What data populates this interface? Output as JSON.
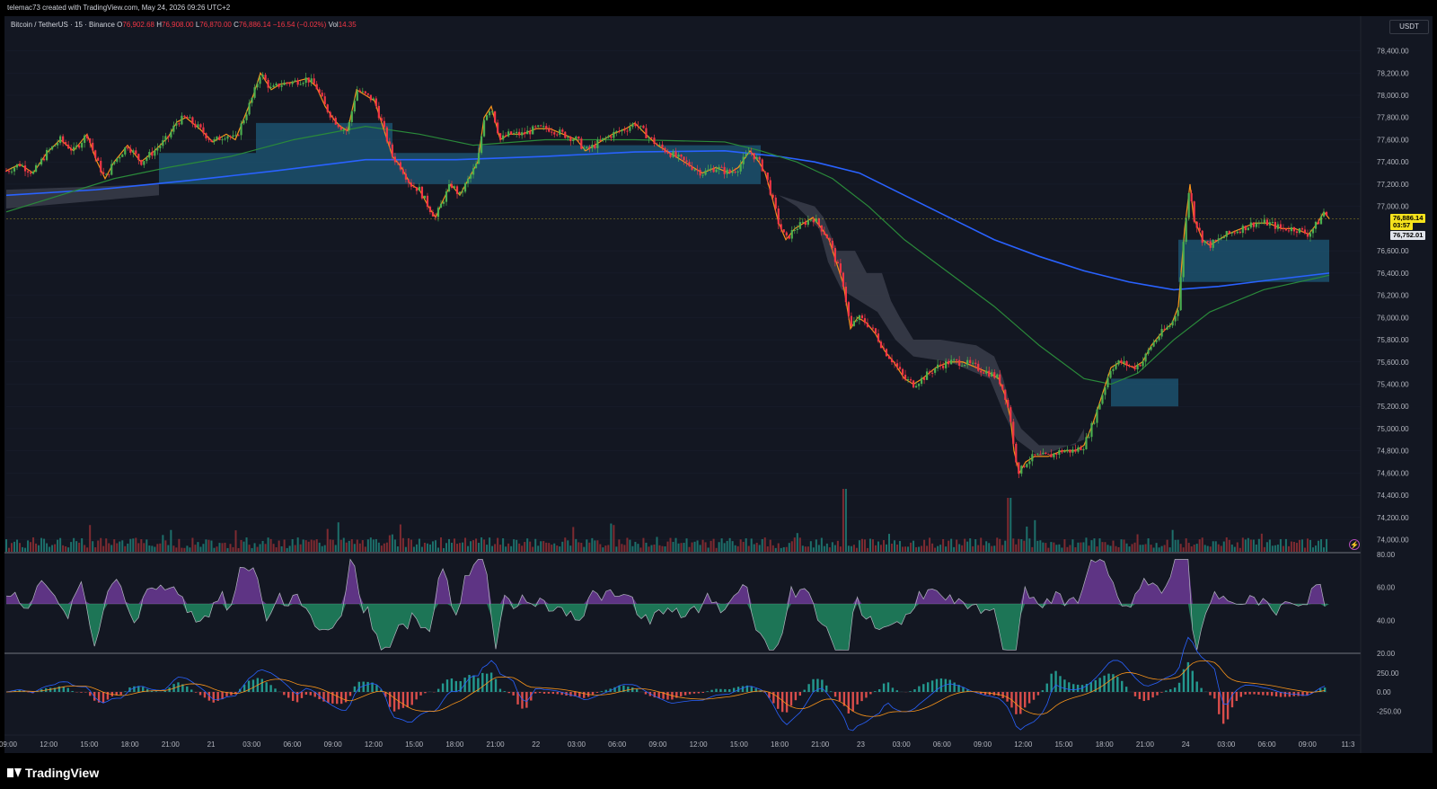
{
  "header": {
    "created_by": "telemac73 created with TradingView.com, May 24, 2026 09:26 UTC+2"
  },
  "legend": {
    "symbol": "Bitcoin / TetherUS · 15 · Binance",
    "open_label": "O",
    "open": "76,902.68",
    "high_label": "H",
    "high": "76,908.00",
    "low_label": "L",
    "low": "76,870.00",
    "close_label": "C",
    "close": "76,886.14",
    "change": "−16.54 (−0.02%)",
    "vol_label": "Vol",
    "vol": "14.35"
  },
  "price_scale": {
    "currency": "USDT",
    "ticks": [
      "78,400.00",
      "78,200.00",
      "78,000.00",
      "77,800.00",
      "77,600.00",
      "77,400.00",
      "77,200.00",
      "77,000.00",
      "76,600.00",
      "76,400.00",
      "76,200.00",
      "76,000.00",
      "75,800.00",
      "75,600.00",
      "75,400.00",
      "75,200.00",
      "75,000.00",
      "74,800.00",
      "74,600.00",
      "74,400.00",
      "74,200.00",
      "74,000.00"
    ],
    "last_price": "76,886.14",
    "countdown": "03:57",
    "other_price": "76,752.01"
  },
  "rsi_scale": [
    "80.00",
    "60.00",
    "40.00",
    "20.00"
  ],
  "macd_scale": [
    "250.00",
    "0.00",
    "-250.00"
  ],
  "time_axis": [
    "09:00",
    "12:00",
    "15:00",
    "18:00",
    "21:00",
    "21",
    "03:00",
    "06:00",
    "09:00",
    "12:00",
    "15:00",
    "18:00",
    "21:00",
    "22",
    "03:00",
    "06:00",
    "09:00",
    "12:00",
    "15:00",
    "18:00",
    "21:00",
    "23",
    "03:00",
    "06:00",
    "09:00",
    "12:00",
    "15:00",
    "18:00",
    "21:00",
    "24",
    "03:00",
    "06:00",
    "09:00",
    "11:3"
  ],
  "branding": {
    "logo_text": "TradingView"
  },
  "icons": {
    "alert": "lightning-icon",
    "logo": "tradingview-logo-icon"
  },
  "colors": {
    "up": "#4caf50",
    "down": "#f23645",
    "ma_fast": "#f7931a",
    "ma_mid": "#2a8a3a",
    "ma_slow": "#2962ff",
    "cloud": "#1e5a78",
    "gray_band": "#3a3d4a",
    "rsi_high": "#9c4dd6",
    "rsi_low": "#26c281",
    "macd": "#2962ff",
    "signal": "#f7931a"
  },
  "chart_data": {
    "type": "candlestick",
    "symbol": "BTCUSDT",
    "interval": "15",
    "ylim": [
      73900,
      78550
    ],
    "close_path": [
      [
        0,
        77320
      ],
      [
        15,
        77380
      ],
      [
        30,
        77300
      ],
      [
        45,
        77480
      ],
      [
        60,
        77600
      ],
      [
        75,
        77500
      ],
      [
        90,
        77650
      ],
      [
        100,
        77420
      ],
      [
        110,
        77250
      ],
      [
        120,
        77400
      ],
      [
        135,
        77550
      ],
      [
        150,
        77400
      ],
      [
        165,
        77500
      ],
      [
        180,
        77620
      ],
      [
        190,
        77760
      ],
      [
        200,
        77800
      ],
      [
        215,
        77700
      ],
      [
        230,
        77580
      ],
      [
        245,
        77650
      ],
      [
        255,
        77600
      ],
      [
        265,
        77800
      ],
      [
        275,
        78000
      ],
      [
        283,
        78200
      ],
      [
        295,
        78050
      ],
      [
        305,
        78100
      ],
      [
        320,
        78120
      ],
      [
        335,
        78150
      ],
      [
        345,
        78080
      ],
      [
        355,
        77900
      ],
      [
        365,
        77780
      ],
      [
        372,
        77720
      ],
      [
        380,
        77680
      ],
      [
        390,
        78050
      ],
      [
        400,
        78000
      ],
      [
        410,
        77950
      ],
      [
        420,
        77700
      ],
      [
        430,
        77450
      ],
      [
        440,
        77350
      ],
      [
        450,
        77200
      ],
      [
        460,
        77150
      ],
      [
        470,
        77000
      ],
      [
        478,
        76900
      ],
      [
        486,
        77050
      ],
      [
        495,
        77200
      ],
      [
        505,
        77100
      ],
      [
        515,
        77250
      ],
      [
        525,
        77400
      ],
      [
        532,
        77800
      ],
      [
        540,
        77900
      ],
      [
        550,
        77600
      ],
      [
        560,
        77650
      ],
      [
        575,
        77650
      ],
      [
        590,
        77700
      ],
      [
        605,
        77700
      ],
      [
        620,
        77650
      ],
      [
        635,
        77600
      ],
      [
        645,
        77500
      ],
      [
        655,
        77550
      ],
      [
        665,
        77600
      ],
      [
        675,
        77650
      ],
      [
        690,
        77700
      ],
      [
        700,
        77750
      ],
      [
        712,
        77650
      ],
      [
        725,
        77550
      ],
      [
        735,
        77500
      ],
      [
        745,
        77450
      ],
      [
        755,
        77400
      ],
      [
        765,
        77350
      ],
      [
        775,
        77300
      ],
      [
        790,
        77350
      ],
      [
        805,
        77300
      ],
      [
        815,
        77350
      ],
      [
        828,
        77500
      ],
      [
        838,
        77400
      ],
      [
        845,
        77300
      ],
      [
        852,
        77100
      ],
      [
        860,
        76850
      ],
      [
        868,
        76700
      ],
      [
        878,
        76800
      ],
      [
        888,
        76850
      ],
      [
        898,
        76900
      ],
      [
        908,
        76800
      ],
      [
        916,
        76700
      ],
      [
        924,
        76500
      ],
      [
        932,
        76300
      ],
      [
        940,
        75900
      ],
      [
        948,
        76000
      ],
      [
        958,
        75950
      ],
      [
        968,
        75850
      ],
      [
        978,
        75700
      ],
      [
        988,
        75600
      ],
      [
        1000,
        75450
      ],
      [
        1010,
        75400
      ],
      [
        1020,
        75450
      ],
      [
        1035,
        75550
      ],
      [
        1050,
        75600
      ],
      [
        1065,
        75600
      ],
      [
        1080,
        75550
      ],
      [
        1095,
        75500
      ],
      [
        1105,
        75450
      ],
      [
        1112,
        75300
      ],
      [
        1118,
        75100
      ],
      [
        1122,
        74800
      ],
      [
        1128,
        74600
      ],
      [
        1135,
        74700
      ],
      [
        1145,
        74750
      ],
      [
        1160,
        74750
      ],
      [
        1175,
        74800
      ],
      [
        1190,
        74800
      ],
      [
        1200,
        74850
      ],
      [
        1210,
        75050
      ],
      [
        1220,
        75300
      ],
      [
        1230,
        75550
      ],
      [
        1240,
        75600
      ],
      [
        1255,
        75550
      ],
      [
        1265,
        75600
      ],
      [
        1275,
        75750
      ],
      [
        1285,
        75850
      ],
      [
        1298,
        75950
      ],
      [
        1305,
        76100
      ],
      [
        1312,
        76800
      ],
      [
        1318,
        77200
      ],
      [
        1322,
        76900
      ],
      [
        1332,
        76700
      ],
      [
        1340,
        76650
      ],
      [
        1350,
        76700
      ],
      [
        1360,
        76750
      ],
      [
        1375,
        76800
      ],
      [
        1390,
        76850
      ],
      [
        1405,
        76850
      ],
      [
        1420,
        76800
      ],
      [
        1435,
        76800
      ],
      [
        1450,
        76750
      ],
      [
        1460,
        76850
      ],
      [
        1467,
        76950
      ],
      [
        1473,
        76890
      ]
    ],
    "bar_count": 490
  }
}
